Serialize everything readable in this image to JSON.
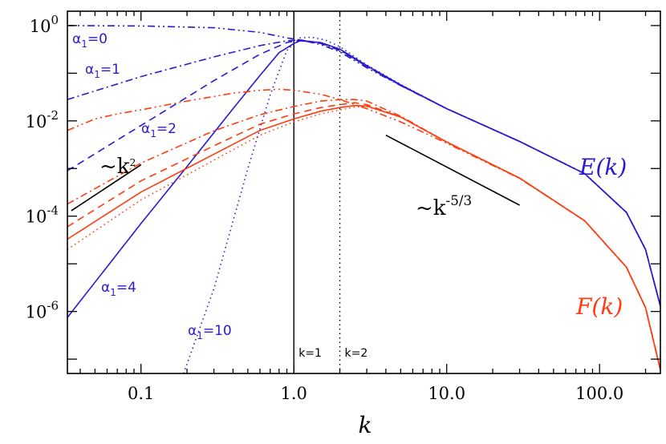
{
  "chart_data": {
    "type": "line",
    "xlabel": "k",
    "xscale": "log",
    "yscale": "log",
    "xlim": [
      0.033,
      250
    ],
    "ylim": [
      5e-08,
      2
    ],
    "x_ticks": [
      {
        "value": 0.1,
        "label": "0.1"
      },
      {
        "value": 1,
        "label": "1.0"
      },
      {
        "value": 10,
        "label": "10.0"
      },
      {
        "value": 100,
        "label": "100.0"
      }
    ],
    "y_ticks": [
      {
        "value": 1,
        "base": "10",
        "exp": "0"
      },
      {
        "value": 0.01,
        "base": "10",
        "exp": "-2"
      },
      {
        "value": 0.0001,
        "base": "10",
        "exp": "-4"
      },
      {
        "value": 1e-06,
        "base": "10",
        "exp": "-6"
      }
    ],
    "colors": {
      "E": "#2a1ad0",
      "F": "#ff3b10",
      "ref": "#000000"
    },
    "vertical_lines": [
      {
        "x": 1,
        "style": "solid",
        "label": "k=1"
      },
      {
        "x": 2,
        "style": "dotted",
        "label": "k=2"
      }
    ],
    "reference_slopes": [
      {
        "label_base": "~k",
        "label_exp": "2",
        "x": [
          0.035,
          0.1
        ],
        "y": [
          0.00013,
          0.0012
        ]
      },
      {
        "label_base": "~k",
        "label_exp": "-5/3",
        "x": [
          4,
          30
        ],
        "y": [
          0.005,
          0.00017
        ]
      }
    ],
    "series_labels": {
      "E": "E(k)",
      "F": "F(k)"
    },
    "series": [
      {
        "group": "E",
        "alpha1": 0,
        "dash": "dashdotdot",
        "points": [
          [
            0.033,
            1.0
          ],
          [
            0.1,
            0.98
          ],
          [
            0.3,
            0.9
          ],
          [
            0.6,
            0.72
          ],
          [
            0.9,
            0.55
          ],
          [
            1.1,
            0.5
          ],
          [
            1.5,
            0.4
          ],
          [
            2,
            0.28
          ],
          [
            3,
            0.13
          ],
          [
            5,
            0.055
          ],
          [
            10,
            0.018
          ],
          [
            30,
            0.0037
          ],
          [
            80,
            0.00078
          ],
          [
            150,
            0.00012
          ],
          [
            200,
            2e-05
          ],
          [
            250,
            1.3e-06
          ]
        ]
      },
      {
        "group": "E",
        "alpha1": 1,
        "dash": "dashdot",
        "points": [
          [
            0.033,
            0.028
          ],
          [
            0.1,
            0.085
          ],
          [
            0.3,
            0.22
          ],
          [
            0.6,
            0.38
          ],
          [
            0.9,
            0.48
          ],
          [
            1.1,
            0.5
          ],
          [
            1.5,
            0.42
          ],
          [
            2,
            0.3
          ],
          [
            3,
            0.14
          ],
          [
            5,
            0.055
          ],
          [
            10,
            0.018
          ],
          [
            30,
            0.0037
          ],
          [
            80,
            0.00078
          ],
          [
            150,
            0.00012
          ],
          [
            200,
            2e-05
          ],
          [
            250,
            1.3e-06
          ]
        ]
      },
      {
        "group": "E",
        "alpha1": 2,
        "dash": "dash",
        "points": [
          [
            0.033,
            0.0009
          ],
          [
            0.1,
            0.008
          ],
          [
            0.3,
            0.07
          ],
          [
            0.6,
            0.25
          ],
          [
            0.9,
            0.44
          ],
          [
            1.1,
            0.5
          ],
          [
            1.5,
            0.43
          ],
          [
            2,
            0.31
          ],
          [
            3,
            0.14
          ],
          [
            5,
            0.056
          ],
          [
            10,
            0.018
          ],
          [
            30,
            0.0037
          ],
          [
            80,
            0.00078
          ],
          [
            150,
            0.00012
          ],
          [
            200,
            2e-05
          ],
          [
            250,
            1.3e-06
          ]
        ]
      },
      {
        "group": "E",
        "alpha1": 4,
        "dash": "solid",
        "points": [
          [
            0.033,
            7.5e-07
          ],
          [
            0.1,
            7e-05
          ],
          [
            0.2,
            0.0011
          ],
          [
            0.4,
            0.018
          ],
          [
            0.6,
            0.09
          ],
          [
            0.8,
            0.27
          ],
          [
            1,
            0.42
          ],
          [
            1.1,
            0.48
          ],
          [
            1.5,
            0.44
          ],
          [
            2,
            0.32
          ],
          [
            3,
            0.145
          ],
          [
            5,
            0.057
          ],
          [
            10,
            0.018
          ],
          [
            30,
            0.0037
          ],
          [
            80,
            0.00078
          ],
          [
            150,
            0.00012
          ],
          [
            200,
            2e-05
          ],
          [
            250,
            1.3e-06
          ]
        ]
      },
      {
        "group": "E",
        "alpha1": 10,
        "dash": "dotted",
        "points": [
          [
            0.19,
            5e-08
          ],
          [
            0.3,
            3e-06
          ],
          [
            0.5,
            0.001
          ],
          [
            0.7,
            0.035
          ],
          [
            0.9,
            0.3
          ],
          [
            1.1,
            0.55
          ],
          [
            1.3,
            0.57
          ],
          [
            1.6,
            0.5
          ],
          [
            2,
            0.36
          ],
          [
            3,
            0.15
          ],
          [
            5,
            0.058
          ],
          [
            10,
            0.018
          ],
          [
            30,
            0.0037
          ],
          [
            80,
            0.00078
          ],
          [
            150,
            0.00012
          ],
          [
            200,
            2e-05
          ],
          [
            250,
            1.3e-06
          ]
        ]
      },
      {
        "group": "F",
        "alpha1": 0,
        "dash": "dashdotdot",
        "points": [
          [
            0.033,
            0.0063
          ],
          [
            0.05,
            0.011
          ],
          [
            0.07,
            0.014
          ],
          [
            0.1,
            0.017
          ],
          [
            0.2,
            0.026
          ],
          [
            0.4,
            0.038
          ],
          [
            0.6,
            0.044
          ],
          [
            0.8,
            0.046
          ],
          [
            1,
            0.044
          ],
          [
            1.5,
            0.036
          ],
          [
            2,
            0.028
          ],
          [
            3,
            0.018
          ],
          [
            5,
            0.0095
          ],
          [
            10,
            0.0034
          ],
          [
            30,
            0.00062
          ],
          [
            80,
            8e-05
          ],
          [
            150,
            8.5e-06
          ],
          [
            200,
            1.2e-06
          ],
          [
            250,
            6e-08
          ]
        ]
      },
      {
        "group": "F",
        "alpha1": 1,
        "dash": "dashdot",
        "points": [
          [
            0.033,
            0.00018
          ],
          [
            0.1,
            0.0013
          ],
          [
            0.3,
            0.0062
          ],
          [
            0.6,
            0.0135
          ],
          [
            1,
            0.02
          ],
          [
            1.5,
            0.026
          ],
          [
            2,
            0.028
          ],
          [
            2.5,
            0.028
          ],
          [
            3,
            0.026
          ],
          [
            5,
            0.0125
          ],
          [
            10,
            0.0036
          ],
          [
            30,
            0.00063
          ],
          [
            80,
            8e-05
          ],
          [
            150,
            8.5e-06
          ],
          [
            200,
            1.2e-06
          ],
          [
            250,
            6e-08
          ]
        ]
      },
      {
        "group": "F",
        "alpha1": 2,
        "dash": "dash",
        "points": [
          [
            0.033,
            6e-05
          ],
          [
            0.1,
            0.00055
          ],
          [
            0.3,
            0.003
          ],
          [
            0.6,
            0.0085
          ],
          [
            1,
            0.014
          ],
          [
            1.5,
            0.019
          ],
          [
            2,
            0.022
          ],
          [
            2.5,
            0.024
          ],
          [
            3,
            0.022
          ],
          [
            5,
            0.012
          ],
          [
            10,
            0.0036
          ],
          [
            30,
            0.00063
          ],
          [
            80,
            8e-05
          ],
          [
            150,
            8.5e-06
          ],
          [
            200,
            1.2e-06
          ],
          [
            250,
            6e-08
          ]
        ]
      },
      {
        "group": "F",
        "alpha1": 4,
        "dash": "solid",
        "points": [
          [
            0.033,
            3.3e-05
          ],
          [
            0.1,
            0.00032
          ],
          [
            0.3,
            0.002
          ],
          [
            0.6,
            0.0063
          ],
          [
            1,
            0.011
          ],
          [
            1.5,
            0.016
          ],
          [
            2,
            0.019
          ],
          [
            2.5,
            0.021
          ],
          [
            3,
            0.0205
          ],
          [
            5,
            0.012
          ],
          [
            10,
            0.0036
          ],
          [
            30,
            0.00063
          ],
          [
            80,
            8e-05
          ],
          [
            150,
            8.5e-06
          ],
          [
            200,
            1.2e-06
          ],
          [
            250,
            6e-08
          ]
        ]
      },
      {
        "group": "F",
        "alpha1": 10,
        "dash": "dotted",
        "points": [
          [
            0.033,
            2e-05
          ],
          [
            0.1,
            0.00022
          ],
          [
            0.3,
            0.0015
          ],
          [
            0.6,
            0.005
          ],
          [
            1,
            0.0095
          ],
          [
            1.5,
            0.014
          ],
          [
            2,
            0.017
          ],
          [
            2.5,
            0.0195
          ],
          [
            3,
            0.02
          ],
          [
            5,
            0.012
          ],
          [
            10,
            0.0036
          ],
          [
            30,
            0.00063
          ],
          [
            80,
            8e-05
          ],
          [
            150,
            8.5e-06
          ],
          [
            200,
            1.2e-06
          ],
          [
            250,
            6e-08
          ]
        ]
      }
    ],
    "alpha_labels": [
      {
        "alpha1": 0,
        "base": "α",
        "sub": "1",
        "value": "=0"
      },
      {
        "alpha1": 1,
        "base": "α",
        "sub": "1",
        "value": "=1"
      },
      {
        "alpha1": 2,
        "base": "α",
        "sub": "1",
        "value": "=2"
      },
      {
        "alpha1": 4,
        "base": "α",
        "sub": "1",
        "value": "=4"
      },
      {
        "alpha1": 10,
        "base": "α",
        "sub": "1",
        "value": "=10"
      }
    ]
  }
}
